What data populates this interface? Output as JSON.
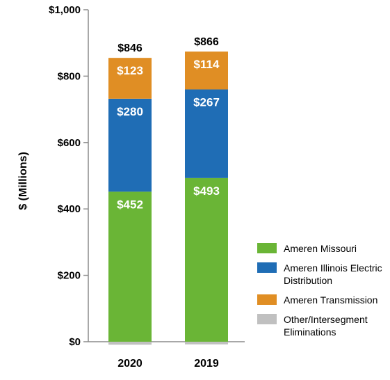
{
  "chart_data": {
    "type": "bar",
    "stacked": true,
    "categories": [
      "2020",
      "2019"
    ],
    "series": [
      {
        "name": "Ameren Missouri",
        "values": [
          452,
          493
        ],
        "labels": [
          "$452",
          "$493"
        ],
        "color": "#6ab536"
      },
      {
        "name": "Ameren Illinois Electric Distribution",
        "values": [
          280,
          267
        ],
        "labels": [
          "$280",
          "$267"
        ],
        "color": "#1f6db5"
      },
      {
        "name": "Ameren Transmission",
        "values": [
          123,
          114
        ],
        "labels": [
          "$123",
          "$114"
        ],
        "color": "#e08e24"
      },
      {
        "name": "Other/Intersegment Eliminations",
        "values": [
          -9,
          -8
        ],
        "labels": [
          "",
          ""
        ],
        "color": "#c0c0c0"
      }
    ],
    "totals": [
      "$846",
      "$866"
    ],
    "ylabel": "$ (Millions)",
    "ylim": [
      0,
      1000
    ],
    "yticks": [
      0,
      200,
      400,
      600,
      800,
      1000
    ],
    "ytick_labels": [
      "$0",
      "$200",
      "$400",
      "$600",
      "$800",
      "$1,000"
    ],
    "grid": false,
    "legend_position": "bottom-right"
  },
  "legend": [
    {
      "label": "Ameren Missouri",
      "color": "#6ab536"
    },
    {
      "label": "Ameren Illinois Electric Distribution",
      "color": "#1f6db5"
    },
    {
      "label": "Ameren Transmission",
      "color": "#e08e24"
    },
    {
      "label": "Other/Intersegment Eliminations",
      "color": "#c0c0c0"
    }
  ]
}
